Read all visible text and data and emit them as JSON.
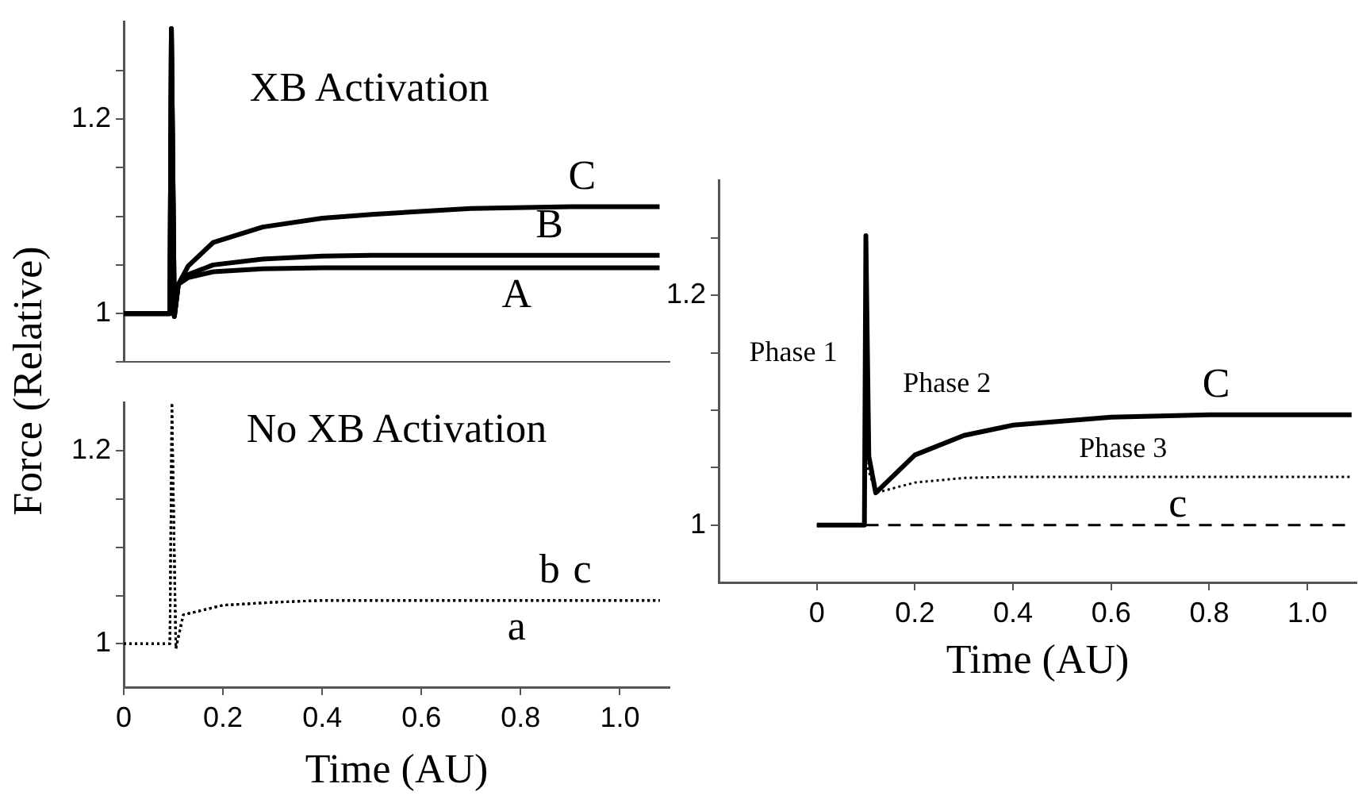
{
  "chart_data": [
    {
      "type": "line",
      "ylabel": "Force (Relative)",
      "annotations": [
        "XB Activation"
      ],
      "xlim": [
        0,
        1.1
      ],
      "ylim": [
        0.95,
        1.3
      ],
      "yticks": [
        {
          "value": 0.95,
          "label": null
        },
        {
          "value": 1,
          "label": "1"
        },
        {
          "value": 1.05,
          "label": null
        },
        {
          "value": 1.1,
          "label": null
        },
        {
          "value": 1.15,
          "label": null
        },
        {
          "value": 1.2,
          "label": "1.2"
        },
        {
          "value": 1.25,
          "label": null
        }
      ],
      "tick_labels": "y",
      "series": [
        {
          "name": "A",
          "color": "#000000",
          "line_style": "solid",
          "x": [
            0,
            0.093,
            0.096,
            0.102,
            0.11,
            0.13,
            0.18,
            0.28,
            0.4,
            0.5,
            0.7,
            0.9,
            1.08
          ],
          "values": [
            1,
            1,
            1.293,
            0.997,
            1.03,
            1.037,
            1.043,
            1.046,
            1.047,
            1.047,
            1.047,
            1.047,
            1.047
          ]
        },
        {
          "name": "B",
          "color": "#000000",
          "line_style": "solid",
          "x": [
            0,
            0.093,
            0.096,
            0.102,
            0.11,
            0.13,
            0.18,
            0.28,
            0.4,
            0.5,
            0.7,
            0.9,
            1.08
          ],
          "values": [
            1,
            1,
            1.293,
            0.997,
            1.03,
            1.04,
            1.05,
            1.056,
            1.059,
            1.06,
            1.06,
            1.06,
            1.06
          ]
        },
        {
          "name": "C",
          "color": "#000000",
          "line_style": "solid",
          "x": [
            0,
            0.093,
            0.096,
            0.102,
            0.11,
            0.13,
            0.18,
            0.28,
            0.4,
            0.5,
            0.7,
            0.9,
            1.08
          ],
          "values": [
            1,
            1,
            1.293,
            0.997,
            1.03,
            1.049,
            1.073,
            1.089,
            1.098,
            1.102,
            1.108,
            1.11,
            1.11
          ]
        }
      ]
    },
    {
      "type": "line",
      "xlabel": "Time (AU)",
      "annotations": [
        "No XB Activation"
      ],
      "xlim": [
        0,
        1.1
      ],
      "ylim": [
        0.955,
        1.25
      ],
      "xticks": [
        0,
        0.2,
        0.4,
        0.6,
        0.8,
        {
          "value": 1,
          "label": "1.0"
        }
      ],
      "yticks": [
        {
          "value": 1,
          "label": "1"
        },
        {
          "value": 1.05,
          "label": null
        },
        {
          "value": 1.1,
          "label": null
        },
        {
          "value": 1.15,
          "label": null
        },
        {
          "value": 1.2,
          "label": "1.2"
        }
      ],
      "series": [
        {
          "name": "a",
          "color": "#000000",
          "line_style": "dotted",
          "x": [
            0,
            0.093,
            0.097,
            0.105,
            0.12,
            0.2,
            0.3,
            0.4,
            0.6,
            0.8,
            1.08
          ],
          "values": [
            1,
            1,
            1.25,
            0.995,
            1.03,
            1.04,
            1.043,
            1.045,
            1.045,
            1.045,
            1.045
          ]
        },
        {
          "name": "b",
          "color": "#000000",
          "line_style": "dotted",
          "x": [
            0,
            0.093,
            0.097,
            0.105,
            0.12,
            0.2,
            0.3,
            0.4,
            0.6,
            0.8,
            1.08
          ],
          "values": [
            1,
            1,
            1.25,
            0.995,
            1.03,
            1.04,
            1.043,
            1.045,
            1.045,
            1.045,
            1.045
          ]
        },
        {
          "name": "c",
          "color": "#000000",
          "line_style": "dotted",
          "x": [
            0,
            0.093,
            0.097,
            0.105,
            0.12,
            0.2,
            0.3,
            0.4,
            0.6,
            0.8,
            1.08
          ],
          "values": [
            1,
            1,
            1.25,
            0.995,
            1.03,
            1.04,
            1.043,
            1.045,
            1.045,
            1.045,
            1.045
          ]
        }
      ]
    },
    {
      "type": "line",
      "xlabel": "Time (AU)",
      "xlim": [
        -0.2,
        1.1
      ],
      "ylim": [
        0.95,
        1.3
      ],
      "xticks": [
        0,
        0.2,
        0.4,
        0.6,
        0.8,
        {
          "value": 1,
          "label": "1.0"
        }
      ],
      "yticks": [
        {
          "value": 1,
          "label": "1"
        },
        {
          "value": 1.05,
          "label": null
        },
        {
          "value": 1.1,
          "label": null
        },
        {
          "value": 1.15,
          "label": null
        },
        {
          "value": 1.2,
          "label": "1.2"
        },
        {
          "value": 1.25,
          "label": null
        }
      ],
      "annotations": [
        "Phase 1",
        "Phase 2",
        "Phase 3"
      ],
      "series": [
        {
          "color": "#000000",
          "line_style": "dashed",
          "x": [
            0.1,
            1.08
          ],
          "values": [
            1,
            1
          ]
        },
        {
          "name": "c",
          "color": "#000000",
          "line_style": "dotted",
          "x": [
            0,
            0.097,
            0.1,
            0.12,
            0.2,
            0.3,
            0.4,
            0.7,
            1.09
          ],
          "values": [
            1,
            1,
            1.055,
            1.028,
            1.037,
            1.041,
            1.042,
            1.042,
            1.042
          ]
        },
        {
          "name": "C",
          "color": "#000000",
          "line_style": "solid",
          "x": [
            0,
            0.097,
            0.1,
            0.106,
            0.12,
            0.2,
            0.3,
            0.4,
            0.6,
            0.8,
            1.09
          ],
          "values": [
            1,
            1,
            1.252,
            1.06,
            1.028,
            1.061,
            1.078,
            1.087,
            1.094,
            1.096,
            1.096
          ]
        }
      ]
    }
  ]
}
